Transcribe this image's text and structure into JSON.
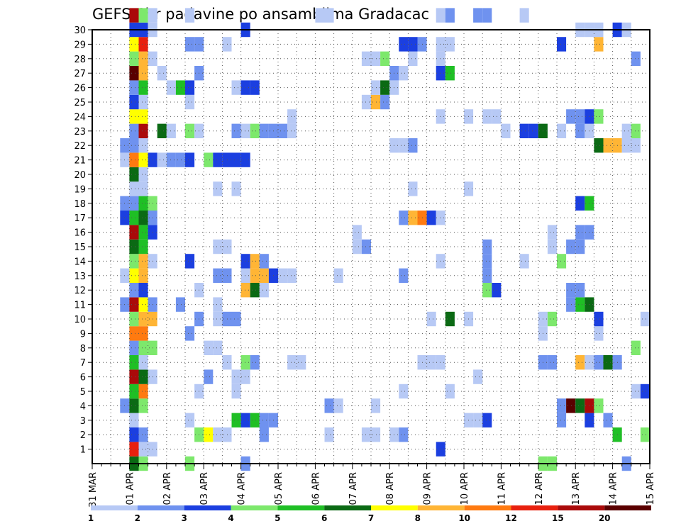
{
  "chart_data": {
    "type": "heatmap",
    "title": "GEFS 6hr padavine po ansamblima Gradacac",
    "xlabel": "",
    "ylabel": "",
    "x_ticks": [
      "31 MAR",
      "01 APR",
      "02 APR",
      "03 APR",
      "04 APR",
      "05 APR",
      "06 APR",
      "07 APR",
      "08 APR",
      "09 APR",
      "10 APR",
      "11 APR",
      "12 APR",
      "13 APR",
      "14 APR",
      "15 APR"
    ],
    "x_range_days": [
      0,
      15
    ],
    "y_ticks": [
      1,
      2,
      3,
      4,
      5,
      6,
      7,
      8,
      9,
      10,
      11,
      12,
      13,
      14,
      15,
      16,
      17,
      18,
      19,
      20,
      21,
      22,
      23,
      24,
      25,
      26,
      27,
      28,
      29,
      30
    ],
    "y_range": [
      0,
      30
    ],
    "grid": true,
    "step_hours": 6,
    "legend": {
      "placement": "bottom",
      "labels": [
        "1",
        "2",
        "3",
        "4",
        "5",
        "6",
        "7",
        "8",
        "10",
        "12",
        "15",
        "20"
      ],
      "colors": [
        "#b7c9f5",
        "#6f92ef",
        "#1b3fe0",
        "#7de86c",
        "#1fbf25",
        "#0b6a14",
        "#ffff00",
        "#ffb535",
        "#ff7a10",
        "#e8200e",
        "#aa0a0a",
        "#5a0000"
      ]
    },
    "cells_note": "Each row is [member, day_from_31MAR_00UTC, level_index]. level_index refers to legend.colors.",
    "cells": [
      [
        0,
        1.125,
        5
      ],
      [
        0,
        1.375,
        3
      ],
      [
        0,
        2.625,
        3
      ],
      [
        0,
        4.125,
        1
      ],
      [
        0,
        12.125,
        3
      ],
      [
        0,
        12.375,
        3
      ],
      [
        0,
        14.375,
        1
      ],
      [
        1,
        1.125,
        9
      ],
      [
        1,
        1.375,
        0
      ],
      [
        1,
        1.625,
        0
      ],
      [
        1,
        9.375,
        2
      ],
      [
        2,
        1.125,
        2
      ],
      [
        2,
        1.375,
        1
      ],
      [
        2,
        2.875,
        3
      ],
      [
        2,
        3.125,
        6
      ],
      [
        2,
        3.375,
        0
      ],
      [
        2,
        3.625,
        0
      ],
      [
        2,
        4.625,
        1
      ],
      [
        2,
        6.375,
        0
      ],
      [
        2,
        7.375,
        0
      ],
      [
        2,
        7.625,
        0
      ],
      [
        2,
        8.125,
        0
      ],
      [
        2,
        8.375,
        1
      ],
      [
        2,
        14.125,
        4
      ],
      [
        2,
        14.875,
        3
      ],
      [
        3,
        1.125,
        0
      ],
      [
        3,
        2.625,
        0
      ],
      [
        3,
        3.875,
        4
      ],
      [
        3,
        4.125,
        2
      ],
      [
        3,
        4.375,
        4
      ],
      [
        3,
        4.625,
        1
      ],
      [
        3,
        4.875,
        1
      ],
      [
        3,
        10.125,
        0
      ],
      [
        3,
        10.375,
        0
      ],
      [
        3,
        10.625,
        2
      ],
      [
        3,
        12.625,
        1
      ],
      [
        3,
        13.375,
        2
      ],
      [
        3,
        13.875,
        1
      ],
      [
        4,
        0.875,
        1
      ],
      [
        4,
        1.125,
        5
      ],
      [
        4,
        1.375,
        3
      ],
      [
        4,
        6.375,
        1
      ],
      [
        4,
        6.625,
        0
      ],
      [
        4,
        7.625,
        0
      ],
      [
        4,
        12.625,
        1
      ],
      [
        4,
        12.875,
        11
      ],
      [
        4,
        13.125,
        5
      ],
      [
        4,
        13.375,
        10
      ],
      [
        4,
        13.625,
        3
      ],
      [
        5,
        1.125,
        4
      ],
      [
        5,
        1.375,
        8
      ],
      [
        5,
        2.875,
        0
      ],
      [
        5,
        3.875,
        0
      ],
      [
        5,
        8.375,
        0
      ],
      [
        5,
        9.625,
        0
      ],
      [
        5,
        14.625,
        0
      ],
      [
        5,
        14.875,
        2
      ],
      [
        6,
        1.125,
        10
      ],
      [
        6,
        1.375,
        5
      ],
      [
        6,
        1.625,
        0
      ],
      [
        6,
        3.125,
        1
      ],
      [
        6,
        3.875,
        0
      ],
      [
        6,
        4.125,
        0
      ],
      [
        6,
        10.375,
        0
      ],
      [
        7,
        1.125,
        4
      ],
      [
        7,
        1.375,
        0
      ],
      [
        7,
        3.625,
        0
      ],
      [
        7,
        4.125,
        3
      ],
      [
        7,
        4.375,
        1
      ],
      [
        7,
        5.375,
        0
      ],
      [
        7,
        5.625,
        0
      ],
      [
        7,
        8.875,
        0
      ],
      [
        7,
        9.125,
        0
      ],
      [
        7,
        9.375,
        0
      ],
      [
        7,
        12.125,
        1
      ],
      [
        7,
        12.375,
        1
      ],
      [
        7,
        13.125,
        7
      ],
      [
        7,
        13.375,
        0
      ],
      [
        7,
        13.625,
        1
      ],
      [
        7,
        13.875,
        5
      ],
      [
        7,
        14.125,
        1
      ],
      [
        8,
        1.125,
        1
      ],
      [
        8,
        1.375,
        3
      ],
      [
        8,
        1.625,
        3
      ],
      [
        8,
        3.125,
        0
      ],
      [
        8,
        3.375,
        0
      ],
      [
        8,
        14.625,
        3
      ],
      [
        9,
        1.125,
        8
      ],
      [
        9,
        1.375,
        8
      ],
      [
        9,
        2.625,
        1
      ],
      [
        9,
        12.125,
        0
      ],
      [
        9,
        13.625,
        0
      ],
      [
        10,
        1.125,
        3
      ],
      [
        10,
        1.375,
        7
      ],
      [
        10,
        1.625,
        7
      ],
      [
        10,
        2.875,
        1
      ],
      [
        10,
        3.375,
        0
      ],
      [
        10,
        3.625,
        1
      ],
      [
        10,
        3.875,
        1
      ],
      [
        10,
        9.125,
        0
      ],
      [
        10,
        9.625,
        5
      ],
      [
        10,
        10.125,
        0
      ],
      [
        10,
        12.125,
        0
      ],
      [
        10,
        12.375,
        3
      ],
      [
        10,
        13.625,
        2
      ],
      [
        10,
        14.875,
        0
      ],
      [
        11,
        0.875,
        1
      ],
      [
        11,
        1.125,
        10
      ],
      [
        11,
        1.375,
        6
      ],
      [
        11,
        1.625,
        1
      ],
      [
        11,
        2.375,
        1
      ],
      [
        11,
        3.375,
        0
      ],
      [
        11,
        13.125,
        4
      ],
      [
        11,
        13.375,
        5
      ],
      [
        11,
        12.875,
        1
      ],
      [
        12,
        1.125,
        1
      ],
      [
        12,
        1.375,
        2
      ],
      [
        12,
        2.875,
        0
      ],
      [
        12,
        4.125,
        7
      ],
      [
        12,
        4.375,
        5
      ],
      [
        12,
        4.625,
        0
      ],
      [
        12,
        10.625,
        3
      ],
      [
        12,
        10.875,
        2
      ],
      [
        12,
        12.875,
        1
      ],
      [
        12,
        13.125,
        1
      ],
      [
        13,
        0.875,
        0
      ],
      [
        13,
        1.125,
        6
      ],
      [
        13,
        1.375,
        7
      ],
      [
        13,
        3.375,
        1
      ],
      [
        13,
        3.625,
        1
      ],
      [
        13,
        4.125,
        0
      ],
      [
        13,
        4.375,
        7
      ],
      [
        13,
        4.625,
        7
      ],
      [
        13,
        4.875,
        2
      ],
      [
        13,
        5.125,
        0
      ],
      [
        13,
        5.375,
        0
      ],
      [
        13,
        6.625,
        0
      ],
      [
        13,
        8.375,
        1
      ],
      [
        13,
        10.625,
        1
      ],
      [
        14,
        1.125,
        3
      ],
      [
        14,
        1.375,
        7
      ],
      [
        14,
        1.625,
        0
      ],
      [
        14,
        2.625,
        2
      ],
      [
        14,
        4.125,
        2
      ],
      [
        14,
        4.375,
        7
      ],
      [
        14,
        4.625,
        1
      ],
      [
        14,
        9.375,
        0
      ],
      [
        14,
        10.625,
        1
      ],
      [
        14,
        11.625,
        0
      ],
      [
        14,
        12.625,
        3
      ],
      [
        15,
        1.125,
        5
      ],
      [
        15,
        1.375,
        4
      ],
      [
        15,
        3.375,
        0
      ],
      [
        15,
        3.625,
        0
      ],
      [
        15,
        7.125,
        0
      ],
      [
        15,
        7.375,
        1
      ],
      [
        15,
        10.625,
        1
      ],
      [
        15,
        12.375,
        0
      ],
      [
        15,
        12.875,
        1
      ],
      [
        15,
        13.125,
        1
      ],
      [
        16,
        1.125,
        10
      ],
      [
        16,
        1.375,
        4
      ],
      [
        16,
        1.625,
        2
      ],
      [
        16,
        7.125,
        0
      ],
      [
        16,
        12.375,
        0
      ],
      [
        16,
        13.125,
        1
      ],
      [
        16,
        13.375,
        1
      ],
      [
        17,
        0.875,
        2
      ],
      [
        17,
        1.125,
        4
      ],
      [
        17,
        1.375,
        5
      ],
      [
        17,
        1.625,
        1
      ],
      [
        17,
        8.375,
        1
      ],
      [
        17,
        8.625,
        7
      ],
      [
        17,
        8.875,
        8
      ],
      [
        17,
        9.125,
        2
      ],
      [
        17,
        9.375,
        0
      ],
      [
        18,
        0.875,
        1
      ],
      [
        18,
        1.125,
        1
      ],
      [
        18,
        1.375,
        4
      ],
      [
        18,
        1.625,
        3
      ],
      [
        18,
        13.125,
        2
      ],
      [
        18,
        13.375,
        4
      ],
      [
        19,
        1.125,
        0
      ],
      [
        19,
        1.375,
        0
      ],
      [
        19,
        3.375,
        0
      ],
      [
        19,
        3.875,
        0
      ],
      [
        19,
        8.625,
        0
      ],
      [
        19,
        10.125,
        0
      ],
      [
        20,
        1.125,
        5
      ],
      [
        20,
        1.375,
        0
      ],
      [
        21,
        0.875,
        0
      ],
      [
        21,
        1.125,
        8
      ],
      [
        21,
        1.375,
        6
      ],
      [
        21,
        1.625,
        2
      ],
      [
        21,
        1.875,
        0
      ],
      [
        21,
        2.125,
        1
      ],
      [
        21,
        2.375,
        1
      ],
      [
        21,
        2.625,
        2
      ],
      [
        21,
        3.125,
        3
      ],
      [
        21,
        3.375,
        2
      ],
      [
        21,
        3.625,
        2
      ],
      [
        21,
        3.875,
        2
      ],
      [
        21,
        4.125,
        2
      ],
      [
        22,
        0.875,
        1
      ],
      [
        22,
        1.125,
        1
      ],
      [
        22,
        1.375,
        0
      ],
      [
        22,
        8.125,
        0
      ],
      [
        22,
        8.375,
        0
      ],
      [
        22,
        8.625,
        1
      ],
      [
        22,
        13.625,
        5
      ],
      [
        22,
        13.875,
        7
      ],
      [
        22,
        14.125,
        7
      ],
      [
        22,
        14.375,
        0
      ],
      [
        22,
        14.625,
        0
      ],
      [
        23,
        1.125,
        1
      ],
      [
        23,
        1.375,
        10
      ],
      [
        23,
        1.875,
        5
      ],
      [
        23,
        2.125,
        0
      ],
      [
        23,
        2.625,
        3
      ],
      [
        23,
        2.875,
        0
      ],
      [
        23,
        3.875,
        1
      ],
      [
        23,
        4.125,
        0
      ],
      [
        23,
        4.375,
        3
      ],
      [
        23,
        4.625,
        1
      ],
      [
        23,
        4.875,
        1
      ],
      [
        23,
        5.125,
        1
      ],
      [
        23,
        5.375,
        0
      ],
      [
        23,
        11.125,
        0
      ],
      [
        23,
        11.625,
        2
      ],
      [
        23,
        11.875,
        2
      ],
      [
        23,
        12.125,
        5
      ],
      [
        23,
        12.625,
        0
      ],
      [
        23,
        13.125,
        1
      ],
      [
        23,
        13.375,
        0
      ],
      [
        23,
        14.375,
        0
      ],
      [
        23,
        14.625,
        3
      ],
      [
        24,
        1.125,
        6
      ],
      [
        24,
        1.375,
        6
      ],
      [
        24,
        5.375,
        0
      ],
      [
        24,
        9.375,
        0
      ],
      [
        24,
        10.125,
        0
      ],
      [
        24,
        10.625,
        0
      ],
      [
        24,
        10.875,
        0
      ],
      [
        24,
        12.875,
        1
      ],
      [
        24,
        13.125,
        1
      ],
      [
        24,
        13.375,
        2
      ],
      [
        24,
        13.625,
        3
      ],
      [
        25,
        1.125,
        2
      ],
      [
        25,
        1.375,
        0
      ],
      [
        25,
        2.625,
        0
      ],
      [
        25,
        7.375,
        0
      ],
      [
        25,
        7.625,
        7
      ],
      [
        25,
        7.875,
        1
      ],
      [
        26,
        1.125,
        1
      ],
      [
        26,
        1.375,
        4
      ],
      [
        26,
        2.125,
        0
      ],
      [
        26,
        2.375,
        4
      ],
      [
        26,
        2.625,
        2
      ],
      [
        26,
        3.875,
        0
      ],
      [
        26,
        4.125,
        2
      ],
      [
        26,
        4.375,
        2
      ],
      [
        26,
        7.625,
        0
      ],
      [
        26,
        7.875,
        5
      ],
      [
        26,
        8.125,
        0
      ],
      [
        27,
        1.125,
        11
      ],
      [
        27,
        1.375,
        7
      ],
      [
        27,
        1.875,
        0
      ],
      [
        27,
        2.875,
        1
      ],
      [
        27,
        8.125,
        1
      ],
      [
        27,
        8.375,
        0
      ],
      [
        27,
        9.375,
        2
      ],
      [
        27,
        9.625,
        4
      ],
      [
        28,
        1.125,
        3
      ],
      [
        28,
        1.375,
        7
      ],
      [
        28,
        1.625,
        0
      ],
      [
        28,
        7.375,
        0
      ],
      [
        28,
        7.625,
        0
      ],
      [
        28,
        7.875,
        3
      ],
      [
        28,
        8.625,
        0
      ],
      [
        28,
        9.375,
        0
      ],
      [
        28,
        14.625,
        1
      ],
      [
        29,
        1.125,
        6
      ],
      [
        29,
        1.375,
        9
      ],
      [
        29,
        2.625,
        1
      ],
      [
        29,
        2.875,
        1
      ],
      [
        29,
        3.625,
        0
      ],
      [
        29,
        8.375,
        2
      ],
      [
        29,
        8.625,
        2
      ],
      [
        29,
        8.875,
        1
      ],
      [
        29,
        9.375,
        0
      ],
      [
        29,
        9.625,
        0
      ],
      [
        29,
        12.625,
        2
      ],
      [
        29,
        13.625,
        7
      ],
      [
        30,
        1.125,
        2
      ],
      [
        30,
        1.375,
        2
      ],
      [
        30,
        1.625,
        0
      ],
      [
        30,
        4.125,
        2
      ],
      [
        30,
        13.125,
        0
      ],
      [
        30,
        13.375,
        0
      ],
      [
        30,
        13.625,
        0
      ],
      [
        30,
        14.125,
        2
      ],
      [
        30,
        14.375,
        0
      ],
      [
        31,
        1.125,
        10
      ],
      [
        31,
        1.375,
        3
      ],
      [
        31,
        1.625,
        0
      ],
      [
        31,
        2.625,
        0
      ],
      [
        31,
        6.125,
        0
      ],
      [
        31,
        6.375,
        0
      ],
      [
        31,
        9.375,
        0
      ],
      [
        31,
        9.625,
        1
      ],
      [
        31,
        10.375,
        1
      ],
      [
        31,
        10.625,
        1
      ],
      [
        31,
        11.625,
        0
      ]
    ]
  }
}
